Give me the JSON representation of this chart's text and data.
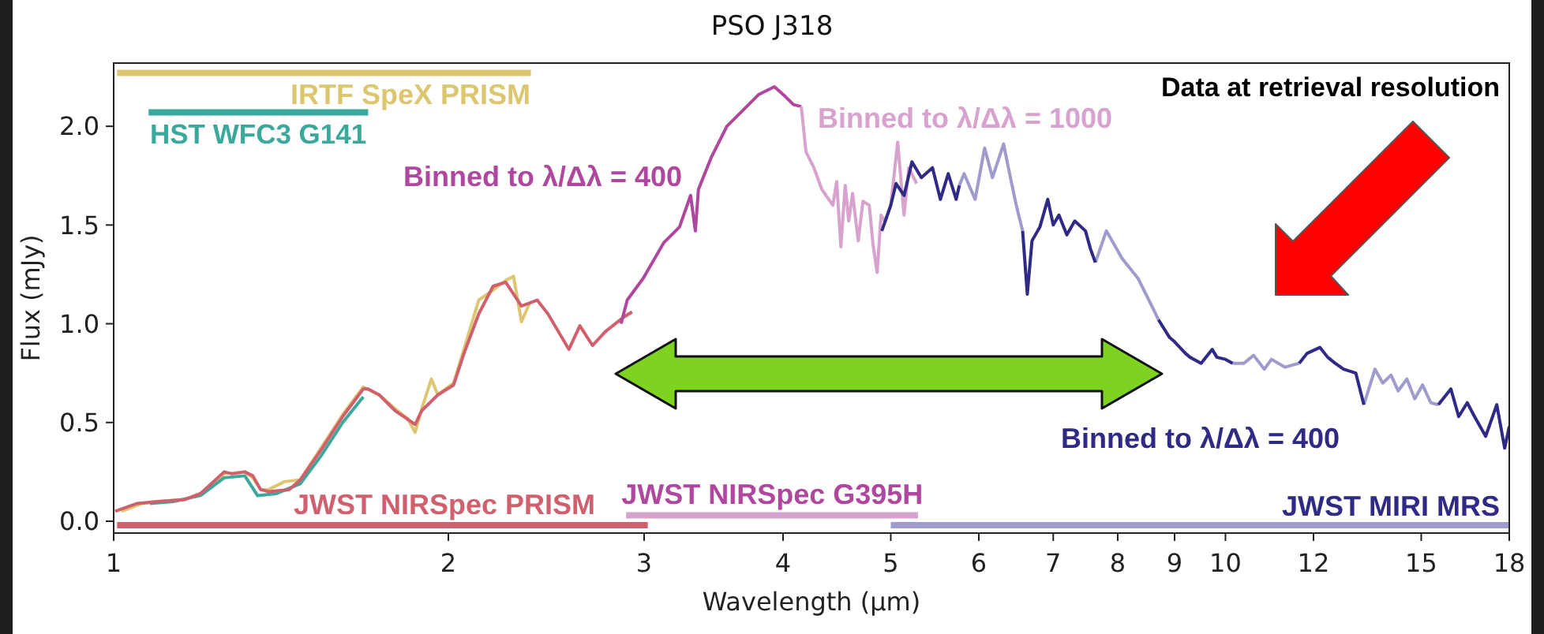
{
  "chart_data": {
    "type": "line",
    "title": "PSO J318",
    "xlabel": "Wavelength (μm)",
    "ylabel": "Flux (mJy)",
    "annotations": [
      "Data at retrieval resolution",
      {
        "text": "JWST NIRSpec G395H",
        "x": 2.89,
        "y": 0.03
      },
      {
        "text": "JWST MIRI MRS",
        "x": 18,
        "y": -0.02
      }
    ],
    "log": "x",
    "xlim": [
      1,
      18
    ],
    "ylim": [
      -0.06,
      2.32
    ],
    "xticks": [
      1,
      2,
      3,
      4,
      5,
      6,
      7,
      8,
      9,
      10,
      12,
      15,
      18
    ],
    "yticks": [
      {
        "value": 0,
        "label": "0.0"
      },
      0.5,
      {
        "value": 1,
        "label": "1.0"
      },
      1.5,
      {
        "value": 2,
        "label": "2.0"
      }
    ],
    "series": [
      {
        "color": "#dcc670",
        "x": [
          1.016,
          1.061,
          1.096,
          1.159,
          1.197,
          1.257,
          1.312,
          1.334,
          1.356,
          1.378,
          1.424,
          1.472,
          1.536,
          1.607,
          1.677,
          1.733,
          1.791,
          1.838,
          1.867,
          1.893,
          1.931,
          1.957,
          2.022,
          2.063,
          2.13,
          2.194,
          2.252,
          2.289,
          2.327,
          2.365
        ],
        "values": [
          0.05,
          0.09,
          0.1,
          0.11,
          0.14,
          0.24,
          0.25,
          0.22,
          0.16,
          0.16,
          0.2,
          0.21,
          0.37,
          0.54,
          0.68,
          0.64,
          0.57,
          0.52,
          0.45,
          0.57,
          0.72,
          0.64,
          0.7,
          0.86,
          1.12,
          1.17,
          1.22,
          1.24,
          1.01,
          1.1
        ]
      },
      {
        "color": "#3aa89a",
        "x": [
          1.078,
          1.132,
          1.197,
          1.257,
          1.312,
          1.347,
          1.401,
          1.472,
          1.536,
          1.607,
          1.677
        ],
        "values": [
          0.09,
          0.1,
          0.13,
          0.22,
          0.23,
          0.13,
          0.14,
          0.19,
          0.33,
          0.5,
          0.63
        ]
      },
      {
        "color": "#d0606e",
        "x": [
          1.003,
          1.05,
          1.096,
          1.159,
          1.197,
          1.257,
          1.278,
          1.312,
          1.334,
          1.356,
          1.378,
          1.438,
          1.472,
          1.536,
          1.607,
          1.677,
          1.694,
          1.733,
          1.791,
          1.867,
          1.893,
          1.957,
          2.022,
          2.063,
          2.13,
          2.194,
          2.252,
          2.327,
          2.404,
          2.458,
          2.567,
          2.626,
          2.696,
          2.768,
          2.87,
          2.926
        ],
        "values": [
          0.05,
          0.09,
          0.1,
          0.11,
          0.14,
          0.25,
          0.24,
          0.25,
          0.23,
          0.16,
          0.15,
          0.16,
          0.21,
          0.36,
          0.53,
          0.67,
          0.67,
          0.64,
          0.56,
          0.49,
          0.56,
          0.64,
          0.69,
          0.84,
          1.05,
          1.19,
          1.21,
          1.09,
          1.12,
          1.05,
          0.87,
          0.99,
          0.89,
          0.96,
          1.03,
          1.06
        ]
      },
      {
        "name": "Binned to λ/Δλ = 400",
        "color": "#b0479e",
        "x": [
          2.86,
          2.897,
          2.994,
          3.124,
          3.228,
          3.303,
          3.336,
          3.357,
          3.446,
          3.561,
          3.68,
          3.802,
          3.929,
          4.02,
          4.087,
          4.154
        ],
        "values": [
          1.0,
          1.12,
          1.23,
          1.41,
          1.49,
          1.65,
          1.47,
          1.68,
          1.84,
          2.0,
          2.08,
          2.16,
          2.2,
          2.15,
          2.11,
          2.1
        ]
      },
      {
        "name": "Binned to λ/Δλ = 1000",
        "color": "#d8a2ce",
        "x": [
          4.154,
          4.195,
          4.264,
          4.335,
          4.435,
          4.47,
          4.509,
          4.55,
          4.583,
          4.62,
          4.674,
          4.72,
          4.782,
          4.82,
          4.861,
          4.9,
          4.941,
          5.0,
          5.072,
          5.139,
          5.19,
          5.275
        ],
        "values": [
          2.1,
          1.87,
          1.79,
          1.68,
          1.6,
          1.72,
          1.39,
          1.7,
          1.52,
          1.66,
          1.42,
          1.62,
          1.6,
          1.4,
          1.26,
          1.55,
          1.52,
          1.6,
          1.92,
          1.55,
          1.79,
          1.71
        ]
      },
      {
        "color": "#9f9bcc",
        "x": [
          5.763,
          5.82,
          5.954,
          6.073,
          6.172,
          6.316,
          6.379,
          6.484,
          6.57,
          6.6,
          7.638,
          7.814,
          8.075,
          8.343,
          8.621,
          8.705,
          9.0,
          10.15,
          10.39,
          10.6,
          10.84,
          11.0,
          11.31,
          11.65,
          12.0,
          13.32,
          13.63,
          13.85,
          14.09,
          14.3,
          14.56,
          14.8,
          15.04,
          15.3,
          15.54
        ],
        "values": [
          1.7,
          1.76,
          1.63,
          1.89,
          1.74,
          1.91,
          1.79,
          1.6,
          1.47,
          null,
          1.31,
          1.47,
          1.33,
          1.23,
          1.07,
          1.02,
          null,
          0.8,
          0.8,
          0.84,
          0.77,
          0.82,
          0.78,
          0.8,
          null,
          0.59,
          0.77,
          0.7,
          0.74,
          0.66,
          0.72,
          0.62,
          0.69,
          0.6,
          0.59
        ]
      },
      {
        "name": "Binned to λ/Δλ = 400",
        "color": "#2e2a85",
        "x": [
          4.908,
          5.0,
          5.055,
          5.14,
          5.224,
          5.327,
          5.451,
          5.541,
          5.632,
          5.725,
          5.763,
          6.0,
          6.57,
          6.634,
          6.699,
          6.809,
          6.921,
          7.0,
          7.083,
          7.2,
          7.319,
          7.484,
          7.56,
          7.638,
          8.0,
          8.705,
          8.908,
          8.995,
          9.205,
          9.294,
          9.509,
          9.73,
          9.825,
          10.0,
          10.15,
          11.0,
          11.65,
          11.84,
          12.16,
          12.36,
          12.55,
          12.77,
          13.1,
          13.32,
          14.5,
          15.54,
          15.95,
          16.21,
          16.5,
          16.75,
          17.14,
          17.54,
          17.83,
          18.0
        ],
        "values": [
          1.47,
          1.6,
          1.71,
          1.65,
          1.82,
          1.74,
          1.79,
          1.63,
          1.76,
          1.63,
          1.7,
          null,
          1.47,
          1.15,
          1.42,
          1.49,
          1.63,
          1.5,
          1.55,
          1.45,
          1.52,
          1.47,
          1.38,
          1.31,
          null,
          1.02,
          0.93,
          0.91,
          0.85,
          0.83,
          0.8,
          0.87,
          0.83,
          0.82,
          0.8,
          null,
          0.8,
          0.85,
          0.88,
          0.83,
          0.8,
          0.77,
          0.75,
          0.59,
          null,
          0.59,
          0.67,
          0.53,
          0.6,
          0.53,
          0.43,
          0.59,
          0.37,
          0.48
        ]
      },
      {
        "name": "IRTF SpeX PRISM",
        "color": "#dcc670",
        "x": [
          1.007,
          2.373
        ],
        "values": [
          2.27,
          2.27
        ]
      },
      {
        "name": "HST WFC3 G141",
        "color": "#3aa89a",
        "x": [
          1.075,
          1.694
        ],
        "values": [
          2.07,
          2.07
        ]
      },
      {
        "name": "JWST NIRSpec PRISM",
        "color": "#d0606e",
        "x": [
          1.007,
          3.023
        ],
        "values": [
          -0.02,
          -0.02
        ]
      },
      {
        "color": "#d8a2ce",
        "x": [
          2.89,
          5.29
        ],
        "values": [
          0.03,
          0.03
        ]
      },
      {
        "color": "#9f9bcc",
        "x": [
          5.0,
          18.0
        ],
        "values": [
          -0.02,
          -0.02
        ]
      }
    ]
  }
}
